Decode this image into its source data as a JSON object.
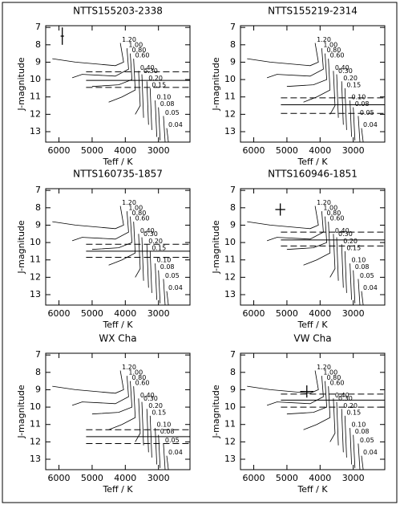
{
  "model_tracks": [
    {
      "label": "1.20",
      "x": [
        4150,
        4050,
        4300,
        5500,
        6200
      ],
      "y": [
        7.9,
        9.0,
        9.2,
        9.0,
        8.8
      ]
    },
    {
      "label": "1.00",
      "x": [
        3950,
        3900,
        4300,
        5300,
        5600
      ],
      "y": [
        8.2,
        9.4,
        9.8,
        9.7,
        9.9
      ]
    },
    {
      "label": "0.80",
      "x": [
        3850,
        3800,
        4200,
        5000
      ],
      "y": [
        8.5,
        10.0,
        10.3,
        10.4
      ]
    },
    {
      "label": "0.60",
      "x": [
        3750,
        3700,
        4100,
        4500
      ],
      "y": [
        8.8,
        10.6,
        11.0,
        11.3
      ]
    },
    {
      "label": "0.40",
      "x": [
        3600,
        3550,
        3700
      ],
      "y": [
        9.5,
        11.5,
        12.0
      ]
    },
    {
      "label": "0.30",
      "x": [
        3500,
        3450
      ],
      "y": [
        9.7,
        12.2
      ]
    },
    {
      "label": "0.20",
      "x": [
        3350,
        3300
      ],
      "y": [
        10.1,
        12.6
      ]
    },
    {
      "label": "0.15",
      "x": [
        3250,
        3200
      ],
      "y": [
        10.5,
        12.9
      ]
    },
    {
      "label": "0.10",
      "x": [
        3100,
        3050
      ],
      "y": [
        11.2,
        13.3
      ]
    },
    {
      "label": "0.08",
      "x": [
        3000,
        2950
      ],
      "y": [
        11.6,
        13.5
      ]
    },
    {
      "label": "0.05",
      "x": [
        2850,
        2800
      ],
      "y": [
        12.1,
        13.6
      ]
    },
    {
      "label": "0.04",
      "x": [
        2750,
        2700
      ],
      "y": [
        12.8,
        13.6
      ]
    }
  ],
  "chart_data": [
    {
      "type": "line",
      "title": "NTTS155203-2338",
      "xlabel": "Teff / K",
      "ylabel": "J-magnitude",
      "xlim": [
        6400,
        2050
      ],
      "ylim": [
        6.9,
        13.6
      ],
      "xticks": [
        6000,
        5000,
        4000,
        3000
      ],
      "yticks": [
        7,
        8,
        9,
        10,
        11,
        12,
        13
      ],
      "hlines": {
        "values": [
          9.55,
          10.05,
          10.45
        ],
        "styles": [
          "dashed",
          "solid",
          "dashed"
        ]
      },
      "error_bar": {
        "x": 5900,
        "y": 7.5,
        "xerr": 50,
        "yerr": 0.5
      }
    },
    {
      "type": "line",
      "title": "NTTS155219-2314",
      "xlabel": "Teff / K",
      "ylabel": "J-magnitude",
      "xlim": [
        6400,
        2050
      ],
      "ylim": [
        6.9,
        13.6
      ],
      "xticks": [
        6000,
        5000,
        4000,
        3000
      ],
      "yticks": [
        7,
        8,
        9,
        10,
        11,
        12,
        13
      ],
      "hlines": {
        "values": [
          11.05,
          11.45,
          11.95
        ],
        "styles": [
          "dashed",
          "solid",
          "dashed"
        ]
      }
    },
    {
      "type": "line",
      "title": "NTTS160735-1857",
      "xlabel": "Teff / K",
      "ylabel": "J-magnitude",
      "xlim": [
        6400,
        2050
      ],
      "ylim": [
        6.9,
        13.6
      ],
      "xticks": [
        6000,
        5000,
        4000,
        3000
      ],
      "yticks": [
        7,
        8,
        9,
        10,
        11,
        12,
        13
      ],
      "hlines": {
        "values": [
          10.1,
          10.5,
          10.85
        ],
        "styles": [
          "dashed",
          "solid",
          "dashed"
        ]
      }
    },
    {
      "type": "line",
      "title": "NTTS160946-1851",
      "xlabel": "Teff / K",
      "ylabel": "J-magnitude",
      "xlim": [
        6400,
        2050
      ],
      "ylim": [
        6.9,
        13.6
      ],
      "xticks": [
        6000,
        5000,
        4000,
        3000
      ],
      "yticks": [
        7,
        8,
        9,
        10,
        11,
        12,
        13
      ],
      "hlines": {
        "values": [
          9.4,
          9.85,
          10.2
        ],
        "styles": [
          "dashed",
          "solid",
          "dashed"
        ]
      },
      "error_bar": {
        "x": 5200,
        "y": 8.1,
        "xerr": 150,
        "yerr": 0.35
      }
    },
    {
      "type": "line",
      "title": "WX Cha",
      "xlabel": "Teff / K",
      "ylabel": "J-magnitude",
      "xlim": [
        6400,
        2050
      ],
      "ylim": [
        6.9,
        13.6
      ],
      "xticks": [
        6000,
        5000,
        4000,
        3000
      ],
      "yticks": [
        7,
        8,
        9,
        10,
        11,
        12,
        13
      ],
      "hlines": {
        "values": [
          11.3,
          11.7,
          12.1
        ],
        "styles": [
          "dashed",
          "solid",
          "dashed"
        ]
      }
    },
    {
      "type": "line",
      "title": "VW Cha",
      "xlabel": "Teff / K",
      "ylabel": "J-magnitude",
      "xlim": [
        6400,
        2050
      ],
      "ylim": [
        6.9,
        13.6
      ],
      "xticks": [
        6000,
        5000,
        4000,
        3000
      ],
      "yticks": [
        7,
        8,
        9,
        10,
        11,
        12,
        13
      ],
      "hlines": {
        "values": [
          9.25,
          9.6,
          10.0
        ],
        "styles": [
          "dashed",
          "solid",
          "dashed"
        ]
      },
      "error_bar": {
        "x": 4400,
        "y": 9.1,
        "xerr": 200,
        "yerr": 0.35
      }
    }
  ]
}
